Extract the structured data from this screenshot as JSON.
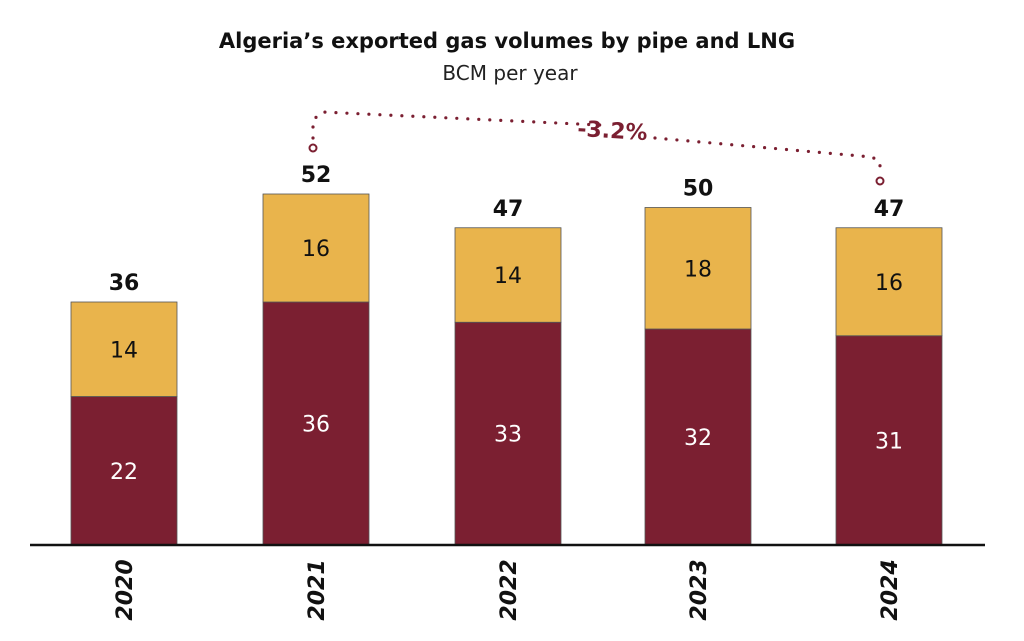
{
  "chart_data": {
    "type": "bar",
    "stacked": true,
    "title": "Algeria’s exported gas volumes by pipe and LNG",
    "subtitle": "BCM per year",
    "categories": [
      "2020",
      "2021",
      "2022",
      "2023",
      "2024"
    ],
    "series": [
      {
        "values": [
          22,
          36,
          33,
          32,
          31
        ],
        "color": "#7b1f31",
        "label_color": "#ffffff"
      },
      {
        "values": [
          14,
          16,
          14,
          18,
          16
        ],
        "color": "#e9b44c",
        "label_color": "#111111"
      }
    ],
    "totals": [
      "36",
      "52",
      "47",
      "50",
      "47"
    ],
    "ylim": [
      0,
      52
    ],
    "grid": false,
    "annotation": {
      "text": "-3.2%",
      "from": "2021",
      "to": "2024",
      "color": "#7b1f31"
    }
  }
}
